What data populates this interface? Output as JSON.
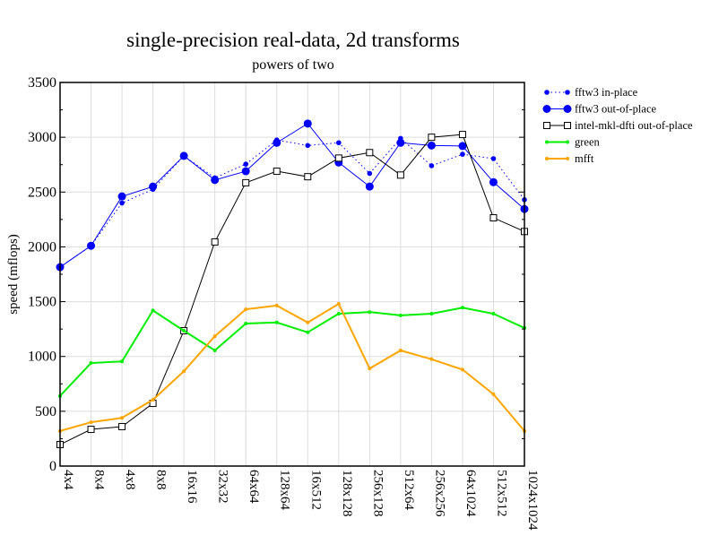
{
  "chart_data": {
    "type": "line",
    "title": "single-precision real-data, 2d transforms",
    "subtitle": "powers of two",
    "xlabel": "",
    "ylabel": "speed (mflops)",
    "ylim": [
      0,
      3500
    ],
    "yticks": [
      0,
      500,
      1000,
      1500,
      2000,
      2500,
      3000,
      3500
    ],
    "grid": true,
    "legend_position": "right",
    "categories": [
      "4x4",
      "8x4",
      "4x8",
      "8x8",
      "16x16",
      "32x32",
      "64x64",
      "128x64",
      "16x512",
      "128x128",
      "256x128",
      "512x64",
      "256x256",
      "64x1024",
      "512x512",
      "1024x1024"
    ],
    "series": [
      {
        "name": "fftw3 in-place",
        "color": "#0000ff",
        "style": "dotted",
        "marker": "small-dot",
        "values": [
          1815,
          2010,
          2400,
          2525,
          2830,
          2630,
          2755,
          2975,
          2925,
          2950,
          2670,
          2990,
          2740,
          2845,
          2805,
          2430
        ]
      },
      {
        "name": "fftw3 out-of-place",
        "color": "#0000ff",
        "style": "solid",
        "marker": "big-dot",
        "values": [
          1815,
          2010,
          2460,
          2550,
          2830,
          2610,
          2690,
          2950,
          3125,
          2770,
          2550,
          2950,
          2925,
          2920,
          2590,
          2345
        ]
      },
      {
        "name": "intel-mkl-dfti out-of-place",
        "color": "#000000",
        "style": "solid",
        "marker": "square",
        "values": [
          196,
          335,
          360,
          572,
          1235,
          2045,
          2585,
          2690,
          2640,
          2810,
          2860,
          2655,
          3000,
          3025,
          2265,
          2140
        ]
      },
      {
        "name": "green",
        "color": "#00ee00",
        "style": "solid",
        "marker": "tiny-dot",
        "values": [
          640,
          940,
          955,
          1420,
          1235,
          1055,
          1300,
          1310,
          1220,
          1390,
          1405,
          1375,
          1390,
          1445,
          1390,
          1260
        ]
      },
      {
        "name": "mfft",
        "color": "#ffa500",
        "style": "solid",
        "marker": "tiny-dot",
        "values": [
          320,
          400,
          440,
          605,
          865,
          1185,
          1430,
          1465,
          1310,
          1480,
          890,
          1055,
          975,
          880,
          655,
          320
        ]
      }
    ]
  }
}
